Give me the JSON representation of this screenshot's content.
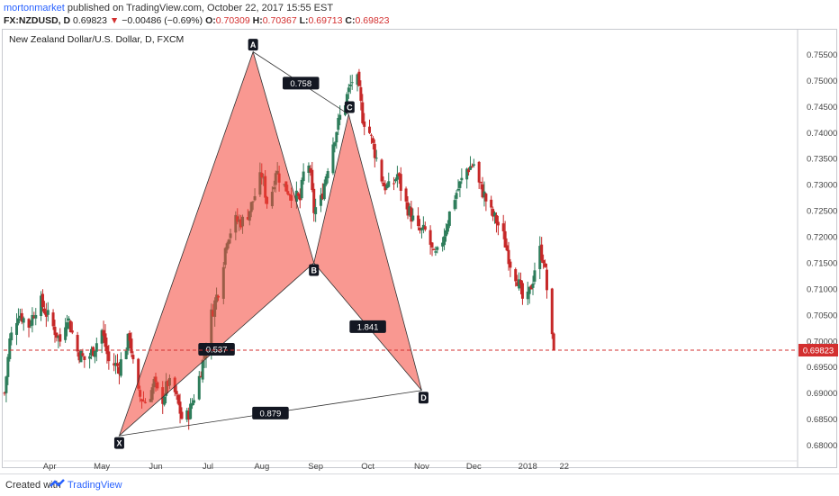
{
  "header": {
    "author": "mortonmarket",
    "published": "published on TradingView.com, October 22, 2017 15:55 EST",
    "symbol": "FX:NZDUSD, D",
    "last": "0.69823",
    "arrow": "▼",
    "change": "−0.00486 (−0.69%)",
    "o_label": "O:",
    "o_val": "0.70309",
    "h_label": "H:",
    "h_val": "0.70367",
    "l_label": "L:",
    "l_val": "0.69713",
    "c_label": "C:",
    "c_val": "0.69823"
  },
  "footer": {
    "created_with": "Created with",
    "brand": "TradingView"
  },
  "colors": {
    "up": "#2e7d5b",
    "down": "#c62828",
    "pattern_fill": "#f44336",
    "price_line": "#d32f2f"
  },
  "chart_data": {
    "type": "candlestick",
    "title": "New Zealand Dollar/U.S. Dollar, D, FXCM",
    "y_ticks": [
      "0.75500",
      "0.75000",
      "0.74500",
      "0.74000",
      "0.73500",
      "0.73000",
      "0.72500",
      "0.72000",
      "0.71500",
      "0.71000",
      "0.70500",
      "0.70000",
      "0.69500",
      "0.69000",
      "0.68500",
      "0.68000"
    ],
    "x_ticks": [
      "Apr",
      "May",
      "Jun",
      "Jul",
      "Aug",
      "Sep",
      "Oct",
      "Nov",
      "Dec",
      "2018",
      "22"
    ],
    "ylim": [
      0.6788,
      0.7578
    ],
    "last_price": 0.69823,
    "last_price_label": "0.69823",
    "pattern": {
      "points": [
        {
          "label": "X",
          "date": "2017-05-11",
          "price": 0.6818
        },
        {
          "label": "A",
          "date": "2017-07-27",
          "price": 0.7555
        },
        {
          "label": "B",
          "date": "2017-08-31",
          "price": 0.715
        },
        {
          "label": "C",
          "date": "2017-09-20",
          "price": 0.7435
        },
        {
          "label": "D",
          "date": "2017-11-01",
          "price": 0.6905
        }
      ],
      "ratios": [
        {
          "label": "0.537",
          "between": "X-B"
        },
        {
          "label": "0.758",
          "between": "A-C"
        },
        {
          "label": "1.841",
          "between": "B-D"
        },
        {
          "label": "0.879",
          "between": "X-D"
        }
      ]
    },
    "path": [
      [
        0,
        0.69
      ],
      [
        3,
        0.7
      ],
      [
        8,
        0.7055
      ],
      [
        14,
        0.703
      ],
      [
        20,
        0.708
      ],
      [
        26,
        0.704
      ],
      [
        32,
        0.7
      ],
      [
        36,
        0.705
      ],
      [
        42,
        0.698
      ],
      [
        47,
        0.696
      ],
      [
        52,
        0.699
      ],
      [
        56,
        0.702
      ],
      [
        60,
        0.696
      ],
      [
        66,
        0.695
      ],
      [
        72,
        0.701
      ],
      [
        76,
        0.69
      ],
      [
        82,
        0.688
      ],
      [
        86,
        0.692
      ],
      [
        90,
        0.688
      ],
      [
        94,
        0.692
      ],
      [
        98,
        0.69
      ],
      [
        103,
        0.684
      ],
      [
        107,
        0.687
      ],
      [
        112,
        0.693
      ],
      [
        116,
        0.699
      ],
      [
        119,
        0.705
      ],
      [
        124,
        0.711
      ],
      [
        128,
        0.72
      ],
      [
        133,
        0.723
      ],
      [
        138,
        0.723
      ],
      [
        142,
        0.726
      ],
      [
        148,
        0.732
      ],
      [
        152,
        0.725
      ],
      [
        156,
        0.733
      ],
      [
        160,
        0.73
      ],
      [
        166,
        0.728
      ],
      [
        170,
        0.727
      ],
      [
        174,
        0.737
      ],
      [
        178,
        0.725
      ],
      [
        182,
        0.727
      ],
      [
        185,
        0.732
      ],
      [
        188,
        0.737
      ],
      [
        193,
        0.743
      ],
      [
        198,
        0.748
      ],
      [
        202,
        0.752
      ],
      [
        206,
        0.743
      ],
      [
        210,
        0.74
      ],
      [
        214,
        0.735
      ],
      [
        218,
        0.73
      ],
      [
        222,
        0.729
      ],
      [
        226,
        0.732
      ],
      [
        230,
        0.727
      ],
      [
        234,
        0.724
      ],
      [
        238,
        0.721
      ],
      [
        243,
        0.721
      ],
      [
        247,
        0.716
      ],
      [
        250,
        0.717
      ],
      [
        254,
        0.722
      ],
      [
        258,
        0.727
      ],
      [
        262,
        0.73
      ],
      [
        266,
        0.733
      ],
      [
        270,
        0.734
      ],
      [
        273,
        0.73
      ],
      [
        276,
        0.728
      ],
      [
        279,
        0.725
      ],
      [
        283,
        0.723
      ],
      [
        287,
        0.72
      ],
      [
        291,
        0.715
      ],
      [
        295,
        0.712
      ],
      [
        298,
        0.708
      ],
      [
        301,
        0.708
      ],
      [
        304,
        0.712
      ],
      [
        307,
        0.718
      ],
      [
        310,
        0.716
      ],
      [
        312,
        0.71
      ],
      [
        314,
        0.702
      ],
      [
        316,
        0.6982
      ]
    ]
  }
}
